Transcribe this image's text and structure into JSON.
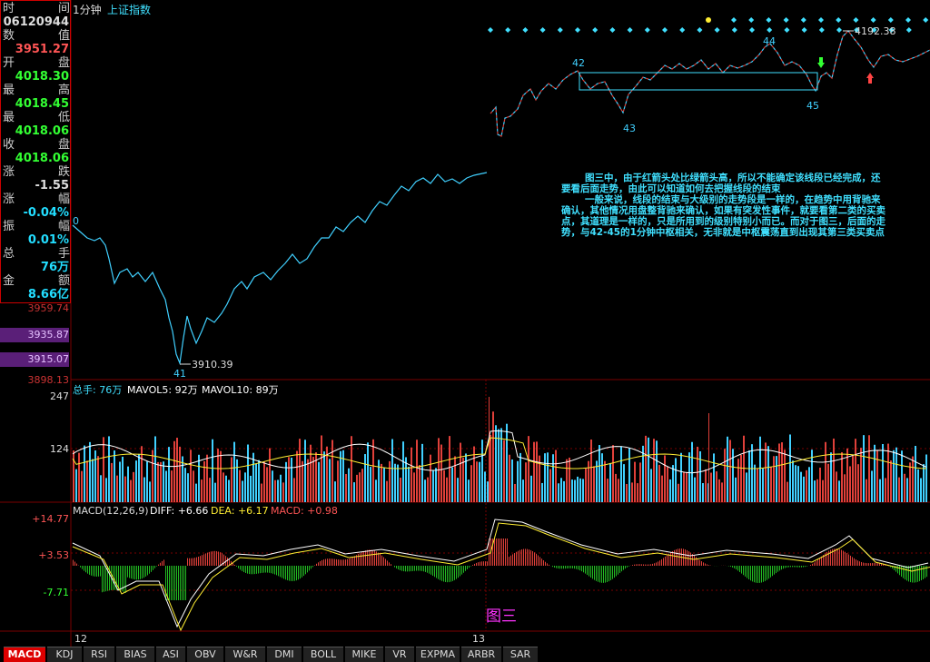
{
  "window": {
    "period": "1分钟",
    "index_name": "上证指数"
  },
  "info_panel": {
    "rows": [
      {
        "label": "时",
        "label2": "间",
        "value": ""
      },
      {
        "label": "",
        "label2": "",
        "value": "06120944"
      },
      {
        "label": "数",
        "label2": "值",
        "value": ""
      },
      {
        "label": "",
        "label2": "",
        "value": "3951.27"
      },
      {
        "label": "开",
        "label2": "盘",
        "value": ""
      },
      {
        "label": "",
        "label2": "",
        "value": "4018.30"
      },
      {
        "label": "最",
        "label2": "高",
        "value": ""
      },
      {
        "label": "",
        "label2": "",
        "value": "4018.45"
      },
      {
        "label": "最",
        "label2": "低",
        "value": ""
      },
      {
        "label": "",
        "label2": "",
        "value": "4018.06"
      },
      {
        "label": "收",
        "label2": "盘",
        "value": ""
      },
      {
        "label": "",
        "label2": "",
        "value": "4018.06"
      },
      {
        "label": "涨",
        "label2": "跌",
        "value": ""
      },
      {
        "label": "",
        "label2": "",
        "value": "-1.55"
      },
      {
        "label": "涨",
        "label2": "幅",
        "value": ""
      },
      {
        "label": "",
        "label2": "",
        "value": "-0.04%"
      },
      {
        "label": "振",
        "label2": "幅",
        "value": ""
      },
      {
        "label": "",
        "label2": "",
        "value": "0.01%"
      },
      {
        "label": "总",
        "label2": "手",
        "value": ""
      },
      {
        "label": "",
        "label2": "",
        "value": "76万"
      },
      {
        "label": "金",
        "label2": "额",
        "value": ""
      },
      {
        "label": "",
        "label2": "",
        "value": "8.66亿"
      }
    ],
    "value_colors": [
      "#ddd",
      "#ddd",
      "#ff5555",
      "#ff5555",
      "#33ff33",
      "#33ff33",
      "#33ff33",
      "#33ff33",
      "#33ff33",
      "#33ff33",
      "#33ff33",
      "#33ff33",
      "#ddd",
      "#ddd",
      "#22ddff",
      "#22ddff"
    ]
  },
  "price_axis": {
    "labels": [
      "3959.74",
      "3935.87",
      "3915.07",
      "3898.13"
    ]
  },
  "price_annotations": {
    "start": "0",
    "p41": "41",
    "low": "3910.39",
    "p42": "42",
    "p43": "43",
    "p44": "44",
    "p45": "45",
    "high": "4192.38"
  },
  "note": {
    "para1": "图三中，由于红箭头处比绿箭头高，所以不能确定该线段已经完成，还要看后面走势，由此可以知道如何去把握线段的结束",
    "para2": "一般来说，线段的结束与大级别的走势段是一样的，在趋势中用背驰来确认，其他情况用盘整背驰来确认，如果有突发性事件，就要看第二类的买卖点，其道理是一样的，只是所用到的级别特别小而已。而对于图三，后面的走势，与42-45的1分钟中枢相关，无非就是中枢震荡直到出现其第三类买卖点"
  },
  "volume_panel": {
    "title": "总手: 76万",
    "ma5": "MAVOL5: 92万",
    "ma10": "MAVOL10: 89万",
    "axis": [
      "247",
      "124"
    ]
  },
  "macd_panel": {
    "title": "MACD(12,26,9)",
    "diff": "DIFF: +6.66",
    "dea": "DEA: +6.17",
    "macd": "MACD: +0.98",
    "axis": [
      "+14.77",
      "+3.53",
      "-7.71"
    ]
  },
  "time_axis": {
    "labels": [
      "12",
      "13"
    ]
  },
  "figure_caption": "图三",
  "tabs": [
    "MACD",
    "KDJ",
    "RSI",
    "BIAS",
    "ASI",
    "OBV",
    "W&R",
    "DMI",
    "BOLL",
    "MIKE",
    "VR",
    "EXPMA",
    "ARBR",
    "SAR"
  ],
  "active_tab": "MACD",
  "colors": {
    "up": "#e0403a",
    "down": "#40d0ff",
    "grid": "#7a0000",
    "box": "#40e0ff",
    "caption": "#ff33ff"
  }
}
